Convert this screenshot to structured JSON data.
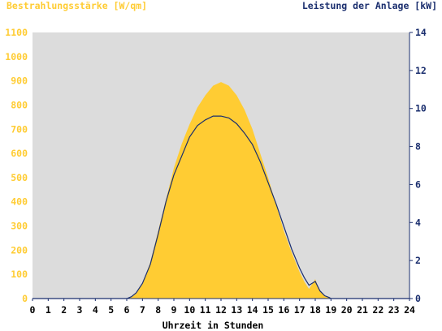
{
  "chart_data": {
    "type": "area",
    "title_left": "Bestrahlungsstärke [W/qm]",
    "title_right": "Leistung der Anlage [kW]",
    "xlabel": "Uhrzeit in Stunden",
    "xlim": [
      0,
      24
    ],
    "x_ticks": [
      "0",
      "1",
      "2",
      "3",
      "4",
      "5",
      "6",
      "7",
      "8",
      "9",
      "10",
      "11",
      "12",
      "13",
      "14",
      "15",
      "16",
      "17",
      "18",
      "19",
      "20",
      "21",
      "22",
      "23",
      "24"
    ],
    "y_left_lim": [
      0,
      1100
    ],
    "y_left_ticks": [
      "0",
      "100",
      "200",
      "300",
      "400",
      "500",
      "600",
      "700",
      "800",
      "900",
      "1000",
      "1100"
    ],
    "y_right_lim": [
      0,
      14
    ],
    "y_right_ticks": [
      "0",
      "2",
      "4",
      "6",
      "8",
      "10",
      "12",
      "14"
    ],
    "grid": false,
    "colors": {
      "plot_background": "#dcdcdc",
      "irradiance": "#ffcc33",
      "irradiance_light": "#ffd95a",
      "power": "#1a2e6e",
      "left_axis_text": "#ffcc33",
      "right_axis_text": "#1a2e6e",
      "x_axis_text": "#000000"
    },
    "series": [
      {
        "name": "Bestrahlungsstärke [W/qm]",
        "axis": "left",
        "kind": "area",
        "x": [
          0,
          6.0,
          6.3,
          6.6,
          7.0,
          7.5,
          8.0,
          8.5,
          9.0,
          9.5,
          10.0,
          10.5,
          11.0,
          11.5,
          12.0,
          12.5,
          13.0,
          13.5,
          14.0,
          14.5,
          15.0,
          15.5,
          16.0,
          16.5,
          17.0,
          17.3,
          17.6,
          18.0,
          18.3,
          18.6,
          18.9,
          19.0,
          24
        ],
        "values": [
          0,
          0,
          5,
          20,
          60,
          150,
          280,
          410,
          540,
          640,
          720,
          790,
          840,
          880,
          895,
          880,
          840,
          780,
          700,
          600,
          500,
          390,
          280,
          190,
          110,
          70,
          40,
          80,
          30,
          10,
          2,
          0,
          0
        ]
      },
      {
        "name": "Leistung der Anlage [kW]",
        "axis": "right",
        "kind": "line",
        "x": [
          0,
          6.0,
          6.3,
          6.6,
          7.0,
          7.5,
          8.0,
          8.5,
          9.0,
          9.5,
          10.0,
          10.5,
          11.0,
          11.5,
          12.0,
          12.5,
          13.0,
          13.5,
          14.0,
          14.5,
          15.0,
          15.5,
          16.0,
          16.5,
          17.0,
          17.3,
          17.6,
          18.0,
          18.3,
          18.6,
          18.9,
          19.0,
          24
        ],
        "values": [
          0,
          0,
          0.1,
          0.3,
          0.8,
          1.8,
          3.4,
          5.1,
          6.5,
          7.5,
          8.5,
          9.1,
          9.4,
          9.6,
          9.6,
          9.5,
          9.2,
          8.7,
          8.1,
          7.2,
          6.1,
          5.0,
          3.8,
          2.6,
          1.6,
          1.1,
          0.7,
          0.9,
          0.4,
          0.15,
          0.05,
          0,
          0
        ]
      }
    ]
  }
}
